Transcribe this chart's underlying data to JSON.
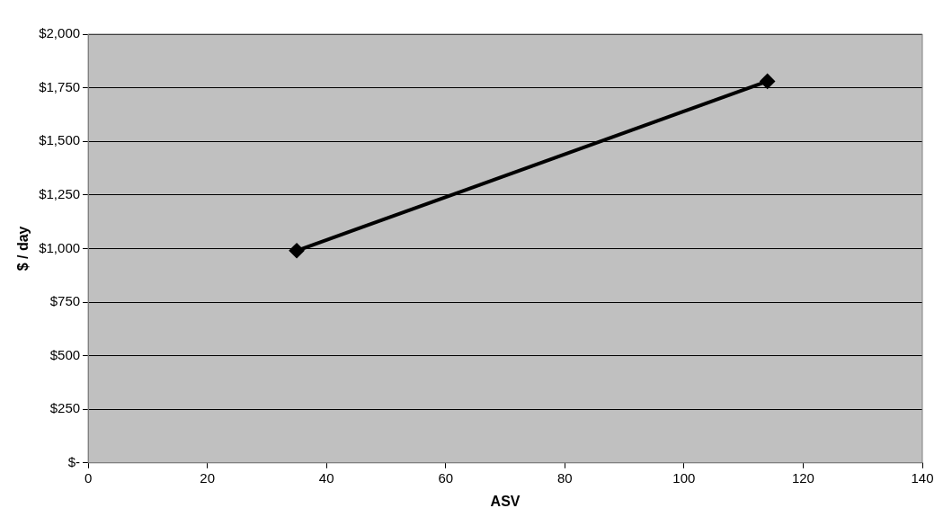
{
  "chart_data": {
    "type": "line",
    "xlabel": "ASV",
    "ylabel": "$ / day",
    "series": [
      {
        "color": "#000000",
        "x": [
          35,
          114
        ],
        "values": [
          990,
          1780
        ]
      }
    ],
    "xlim": [
      0,
      140
    ],
    "xticks": [
      0,
      20,
      40,
      60,
      80,
      100,
      120,
      140
    ],
    "ylim": [
      0,
      2000
    ],
    "yticks": [
      {
        "value": 0,
        "label": "$-"
      },
      {
        "value": 250,
        "label": "$250"
      },
      {
        "value": 500,
        "label": "$500"
      },
      {
        "value": 750,
        "label": "$750"
      },
      {
        "value": 1000,
        "label": "$1,000"
      },
      {
        "value": 1250,
        "label": "$1,250"
      },
      {
        "value": 1500,
        "label": "$1,500"
      },
      {
        "value": 1750,
        "label": "$1,750"
      },
      {
        "value": 2000,
        "label": "$2,000"
      }
    ],
    "grid": "y",
    "legend": false,
    "marker": "diamond",
    "line_style": "solid"
  }
}
